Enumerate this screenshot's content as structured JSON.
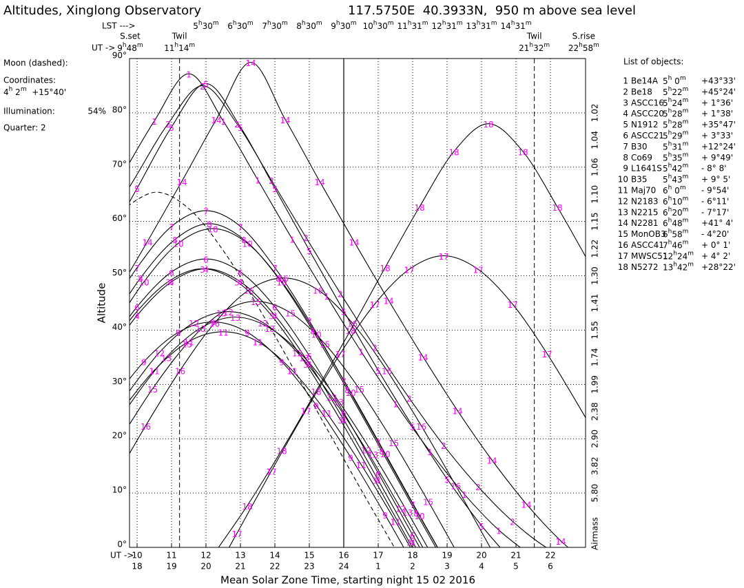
{
  "header": {
    "title": "Altitudes, Xinglong Observatory",
    "location": "117.5750E  40.3933N,  950 m above sea level"
  },
  "moon_panel": {
    "heading": "Moon (dashed):",
    "coord_label": "Coordinates:",
    "coords": "4h 2m  +15°40'",
    "illumination_label": "Illumination:",
    "illumination": "54%",
    "quarter": "Quarter: 2"
  },
  "chart_data": {
    "type": "line",
    "y_label": "Altitude",
    "x_label": "Mean Solar Zone Time, starting night 15 02 2016",
    "xlim": [
      17.78,
      31.02
    ],
    "ylim": [
      0,
      90
    ],
    "grid": true,
    "label_color": "#ff00ff",
    "xticks": [
      18,
      19,
      20,
      21,
      22,
      23,
      24,
      {
        "value": 25,
        "label": "1"
      },
      {
        "value": 26,
        "label": "2"
      },
      {
        "value": 27,
        "label": "3"
      },
      {
        "value": 28,
        "label": "4"
      },
      {
        "value": 29,
        "label": "5"
      },
      {
        "value": 30,
        "label": "6"
      }
    ],
    "ut_prefix": "UT ->",
    "ut_ticks": [
      {
        "value": 18,
        "label": "10"
      },
      {
        "value": 19,
        "label": "11"
      },
      {
        "value": 20,
        "label": "12"
      },
      {
        "value": 21,
        "label": "13"
      },
      {
        "value": 22,
        "label": "14"
      },
      {
        "value": 23,
        "label": "15"
      },
      {
        "value": 24,
        "label": "16"
      },
      {
        "value": 25,
        "label": "17"
      },
      {
        "value": 26,
        "label": "18"
      },
      {
        "value": 27,
        "label": "19"
      },
      {
        "value": 28,
        "label": "20"
      },
      {
        "value": 29,
        "label": "21"
      },
      {
        "value": 30,
        "label": "22"
      }
    ],
    "lst_prefix": "LST --->",
    "lst_ticks": [
      {
        "value": 20,
        "label": "5h30m"
      },
      {
        "value": 21,
        "label": "6h30m"
      },
      {
        "value": 22,
        "label": "7h30m"
      },
      {
        "value": 23,
        "label": "8h30m"
      },
      {
        "value": 24,
        "label": "9h30m"
      },
      {
        "value": 25,
        "label": "10h30m"
      },
      {
        "value": 26,
        "label": "11h31m"
      },
      {
        "value": 27,
        "label": "12h31m"
      },
      {
        "value": 28,
        "label": "13h31m"
      },
      {
        "value": 29,
        "label": "14h31m"
      }
    ],
    "ut_event_prefix": "UT ->",
    "events": [
      {
        "label": "S.set",
        "time": "9h48m",
        "x": 17.8,
        "line": false
      },
      {
        "label": "Twil",
        "time": "11h14m",
        "x": 19.233,
        "line": true
      },
      {
        "label": "Twil",
        "time": "21h32m",
        "x": 29.533,
        "line": true
      },
      {
        "label": "S.rise",
        "time": "22h58m",
        "x": 30.967,
        "line": false
      }
    ],
    "midnight": 24,
    "yticks": [
      {
        "value": 0,
        "label": "0°"
      },
      {
        "value": 10,
        "label": "10°"
      },
      {
        "value": 20,
        "label": "20°"
      },
      {
        "value": 30,
        "label": "30°"
      },
      {
        "value": 40,
        "label": "40°"
      },
      {
        "value": 50,
        "label": "50°"
      },
      {
        "value": 60,
        "label": "60°"
      },
      {
        "value": 70,
        "label": "70°"
      },
      {
        "value": 80,
        "label": "80°"
      },
      {
        "value": 90,
        "label": "90°"
      }
    ],
    "airmass_label": "Airmass",
    "airmass_ticks": [
      {
        "value": 80,
        "label": "1.02"
      },
      {
        "value": 75,
        "label": "1.04"
      },
      {
        "value": 70,
        "label": "1.06"
      },
      {
        "value": 65,
        "label": "1.10"
      },
      {
        "value": 60,
        "label": "1.15"
      },
      {
        "value": 55,
        "label": "1.22"
      },
      {
        "value": 50,
        "label": "1.30"
      },
      {
        "value": 45,
        "label": "1.41"
      },
      {
        "value": 40,
        "label": "1.55"
      },
      {
        "value": 35,
        "label": "1.74"
      },
      {
        "value": 30,
        "label": "1.99"
      },
      {
        "value": 25,
        "label": "2.38"
      },
      {
        "value": 20,
        "label": "2.90"
      },
      {
        "value": 15,
        "label": "3.82"
      },
      {
        "value": 10,
        "label": "5.80"
      }
    ],
    "list_title": "List of objects:",
    "moon": {
      "color": "#000000",
      "x": [
        17.55,
        18.55,
        19.55,
        20.55,
        21.55,
        22.55,
        23.55,
        24.55,
        25.55
      ],
      "values": [
        62.1,
        65.4,
        62.1,
        54.2,
        43.9,
        32.8,
        21.4,
        10.1,
        -0.9
      ]
    },
    "series": [
      {
        "id": "1",
        "name": "Be14A",
        "ra": "5h 0m",
        "dec": "+43°33'",
        "color": "#000000",
        "x": [
          17.5,
          18.5,
          19.5,
          20.5,
          21.5,
          22.5,
          23.5,
          24.5,
          25.5,
          26.5,
          27.5,
          28.5,
          29.5
        ],
        "values": [
          67.7,
          78.5,
          87.2,
          78.5,
          67.7,
          56.8,
          46.3,
          36.1,
          26.5,
          17.7,
          9.8,
          3.2,
          -1.8
        ]
      },
      {
        "id": "2",
        "name": "Be18",
        "ra": "5h22m",
        "dec": "+45°24'",
        "color": "#000000",
        "x": [
          16.9,
          17.9,
          18.9,
          19.9,
          20.9,
          21.9,
          22.9,
          23.9,
          24.9,
          25.9,
          26.9,
          27.9,
          28.9,
          29.9,
          30.9
        ],
        "values": [
          57.1,
          67.6,
          78.0,
          85.0,
          78.0,
          67.6,
          57.1,
          46.8,
          36.9,
          27.5,
          18.8,
          11.2,
          4.8,
          -0.1,
          -3.2
        ]
      },
      {
        "id": "3",
        "name": "ASCC16",
        "ra": "5h24m",
        "dec": "+ 1°36'",
        "color": "#000000",
        "x": [
          16.9,
          17.9,
          18.9,
          19.9,
          20.9,
          21.9,
          22.9,
          23.9,
          24.9,
          25.9,
          26.9
        ],
        "values": [
          33.8,
          42.7,
          48.9,
          51.3,
          48.9,
          42.7,
          33.8,
          23.5,
          12.4,
          1.0,
          -10.3
        ]
      },
      {
        "id": "4",
        "name": "ASCC20",
        "ra": "5h28m",
        "dec": "+ 1°38'",
        "color": "#000000",
        "x": [
          17.0,
          18.0,
          19.0,
          20.0,
          21.0,
          22.0,
          23.0,
          24.0,
          25.0,
          26.0,
          27.0
        ],
        "values": [
          33.8,
          42.7,
          48.9,
          51.3,
          48.9,
          42.7,
          33.8,
          23.5,
          12.4,
          1.0,
          -10.3
        ]
      },
      {
        "id": "5",
        "name": "N1912",
        "ra": "5h28m",
        "dec": "+35°47'",
        "color": "#000000",
        "x": [
          17.0,
          18.0,
          19.0,
          20.0,
          21.0,
          22.0,
          23.0,
          24.0,
          25.0,
          26.0,
          27.0,
          28.0,
          29.0
        ],
        "values": [
          54.7,
          66.1,
          77.4,
          85.4,
          77.4,
          66.1,
          54.7,
          43.5,
          32.6,
          22.3,
          12.6,
          4.0,
          -3.3
        ]
      },
      {
        "id": "6",
        "name": "ASCC21",
        "ra": "5h29m",
        "dec": "+ 3°33'",
        "color": "#000000",
        "x": [
          17.0,
          18.0,
          19.0,
          20.0,
          21.0,
          22.0,
          23.0,
          24.0,
          25.0,
          26.0,
          27.0
        ],
        "values": [
          35.3,
          44.3,
          50.7,
          53.1,
          50.7,
          44.3,
          35.3,
          24.8,
          13.7,
          2.3,
          -9.0
        ]
      },
      {
        "id": "7",
        "name": "B30",
        "ra": "5h31m",
        "dec": "+12°24'",
        "color": "#000000",
        "x": [
          17.0,
          18.0,
          19.0,
          20.0,
          21.0,
          22.0,
          23.0,
          24.0,
          25.0,
          26.0,
          27.0
        ],
        "values": [
          41.7,
          51.5,
          59.1,
          62.0,
          59.1,
          51.5,
          41.7,
          30.7,
          19.4,
          8.0,
          -3.1
        ]
      },
      {
        "id": "8",
        "name": "Co69",
        "ra": "5h35m",
        "dec": "+ 9°49'",
        "color": "#000000",
        "x": [
          17.1,
          18.1,
          19.1,
          20.1,
          21.1,
          22.1,
          23.1,
          24.1,
          25.1,
          26.1,
          27.1
        ],
        "values": [
          39.9,
          49.6,
          56.7,
          59.6,
          56.7,
          49.6,
          39.9,
          29.1,
          17.8,
          6.4,
          -4.8
        ]
      },
      {
        "id": "9",
        "name": "L1641S",
        "ra": "5h42m",
        "dec": "- 8° 8'",
        "color": "#000000",
        "x": [
          17.2,
          18.2,
          19.2,
          20.2,
          21.2,
          22.2,
          23.2,
          24.2,
          25.2,
          26.2
        ],
        "values": [
          26.2,
          34.2,
          39.6,
          41.5,
          39.6,
          34.2,
          26.2,
          16.6,
          6.0,
          -5.2
        ]
      },
      {
        "id": "10",
        "name": "B35",
        "ra": "5h43m",
        "dec": "+ 9° 5'",
        "color": "#000000",
        "x": [
          17.2,
          18.2,
          19.2,
          20.2,
          21.2,
          22.2,
          23.2,
          24.2,
          25.2,
          26.2,
          27.2
        ],
        "values": [
          39.3,
          48.9,
          56.0,
          58.7,
          56.0,
          48.9,
          39.3,
          28.6,
          17.3,
          5.9,
          -5.3
        ]
      },
      {
        "id": "11",
        "name": "Maj70",
        "ra": "6h 0m",
        "dec": "- 9°54'",
        "color": "#000000",
        "x": [
          17.5,
          18.5,
          19.5,
          20.5,
          21.5,
          22.5,
          23.5,
          24.5,
          25.5,
          26.5
        ],
        "values": [
          24.8,
          32.6,
          37.9,
          39.7,
          37.9,
          32.6,
          24.8,
          15.3,
          4.8,
          -6.4
        ]
      },
      {
        "id": "12",
        "name": "N2183",
        "ra": "6h10m",
        "dec": "- 6°11'",
        "color": "#000000",
        "x": [
          17.65,
          18.65,
          19.65,
          20.65,
          21.65,
          22.65,
          23.65,
          24.65,
          25.65,
          26.65
        ],
        "values": [
          27.7,
          35.9,
          41.4,
          43.4,
          41.4,
          35.9,
          27.7,
          18.0,
          7.2,
          -4.0
        ]
      },
      {
        "id": "13",
        "name": "N2215",
        "ra": "6h20m",
        "dec": "- 7°17'",
        "color": "#000000",
        "x": [
          16.85,
          17.85,
          18.85,
          19.85,
          20.85,
          21.85,
          22.85,
          23.85,
          24.85,
          25.85,
          26.85
        ],
        "values": [
          17.2,
          26.9,
          35.0,
          40.4,
          42.4,
          40.4,
          35.0,
          26.9,
          17.2,
          6.5,
          -4.7
        ]
      },
      {
        "id": "14",
        "name": "N2281",
        "ra": "6h48m",
        "dec": "+41° 4'",
        "color": "#000000",
        "x": [
          17.3,
          18.3,
          19.3,
          20.3,
          21.3,
          22.3,
          23.3,
          24.3,
          25.3,
          26.3,
          27.3,
          28.3,
          29.3,
          30.3,
          31.3
        ],
        "values": [
          45.5,
          56.3,
          67.4,
          78.8,
          89.3,
          78.8,
          67.4,
          56.3,
          45.5,
          35.1,
          25.2,
          16.1,
          8.0,
          1.2,
          -4.1
        ]
      },
      {
        "id": "15",
        "name": "MonOB3",
        "ra": "6h58m",
        "dec": "- 4°20'",
        "color": "#000000",
        "x": [
          17.45,
          18.45,
          19.45,
          20.45,
          21.45,
          22.45,
          23.45,
          24.45,
          25.45,
          26.45,
          27.45
        ],
        "values": [
          19.3,
          29.2,
          37.5,
          43.2,
          45.3,
          43.2,
          37.5,
          29.2,
          19.3,
          8.5,
          -2.8
        ]
      },
      {
        "id": "16",
        "name": "ASCC41",
        "ra": "7h46m",
        "dec": "+ 0° 1'",
        "color": "#000000",
        "x": [
          17.25,
          18.25,
          19.25,
          20.25,
          21.25,
          22.25,
          23.25,
          24.25,
          25.25,
          26.25,
          27.25,
          28.25,
          29.25
        ],
        "values": [
          11.4,
          22.4,
          32.6,
          41.3,
          47.4,
          49.6,
          47.4,
          41.3,
          32.6,
          22.4,
          11.4,
          0,
          -11.4
        ]
      },
      {
        "id": "17",
        "name": "MWSC51",
        "ra": "12h24m",
        "dec": "+ 4° 2'",
        "color": "#000000",
        "x": [
          19.9,
          20.9,
          21.9,
          22.9,
          23.9,
          24.9,
          25.9,
          26.9,
          27.9,
          28.9,
          29.9,
          30.9,
          31.9
        ],
        "values": [
          -8.7,
          2.6,
          14.1,
          25.2,
          35.7,
          44.8,
          51.2,
          53.7,
          51.2,
          44.8,
          35.7,
          25.2,
          14.1
        ]
      },
      {
        "id": "18",
        "name": "N5272",
        "ra": "13h42m",
        "dec": "+28°22'",
        "color": "#000000",
        "x": [
          20.2,
          21.2,
          22.2,
          23.2,
          24.2,
          25.2,
          26.2,
          27.2,
          28.2,
          29.2,
          30.2,
          31.2
        ],
        "values": [
          -1.5,
          7.7,
          17.9,
          28.8,
          40.0,
          51.5,
          62.7,
          72.9,
          78.0,
          72.9,
          62.7,
          51.5
        ]
      }
    ]
  }
}
